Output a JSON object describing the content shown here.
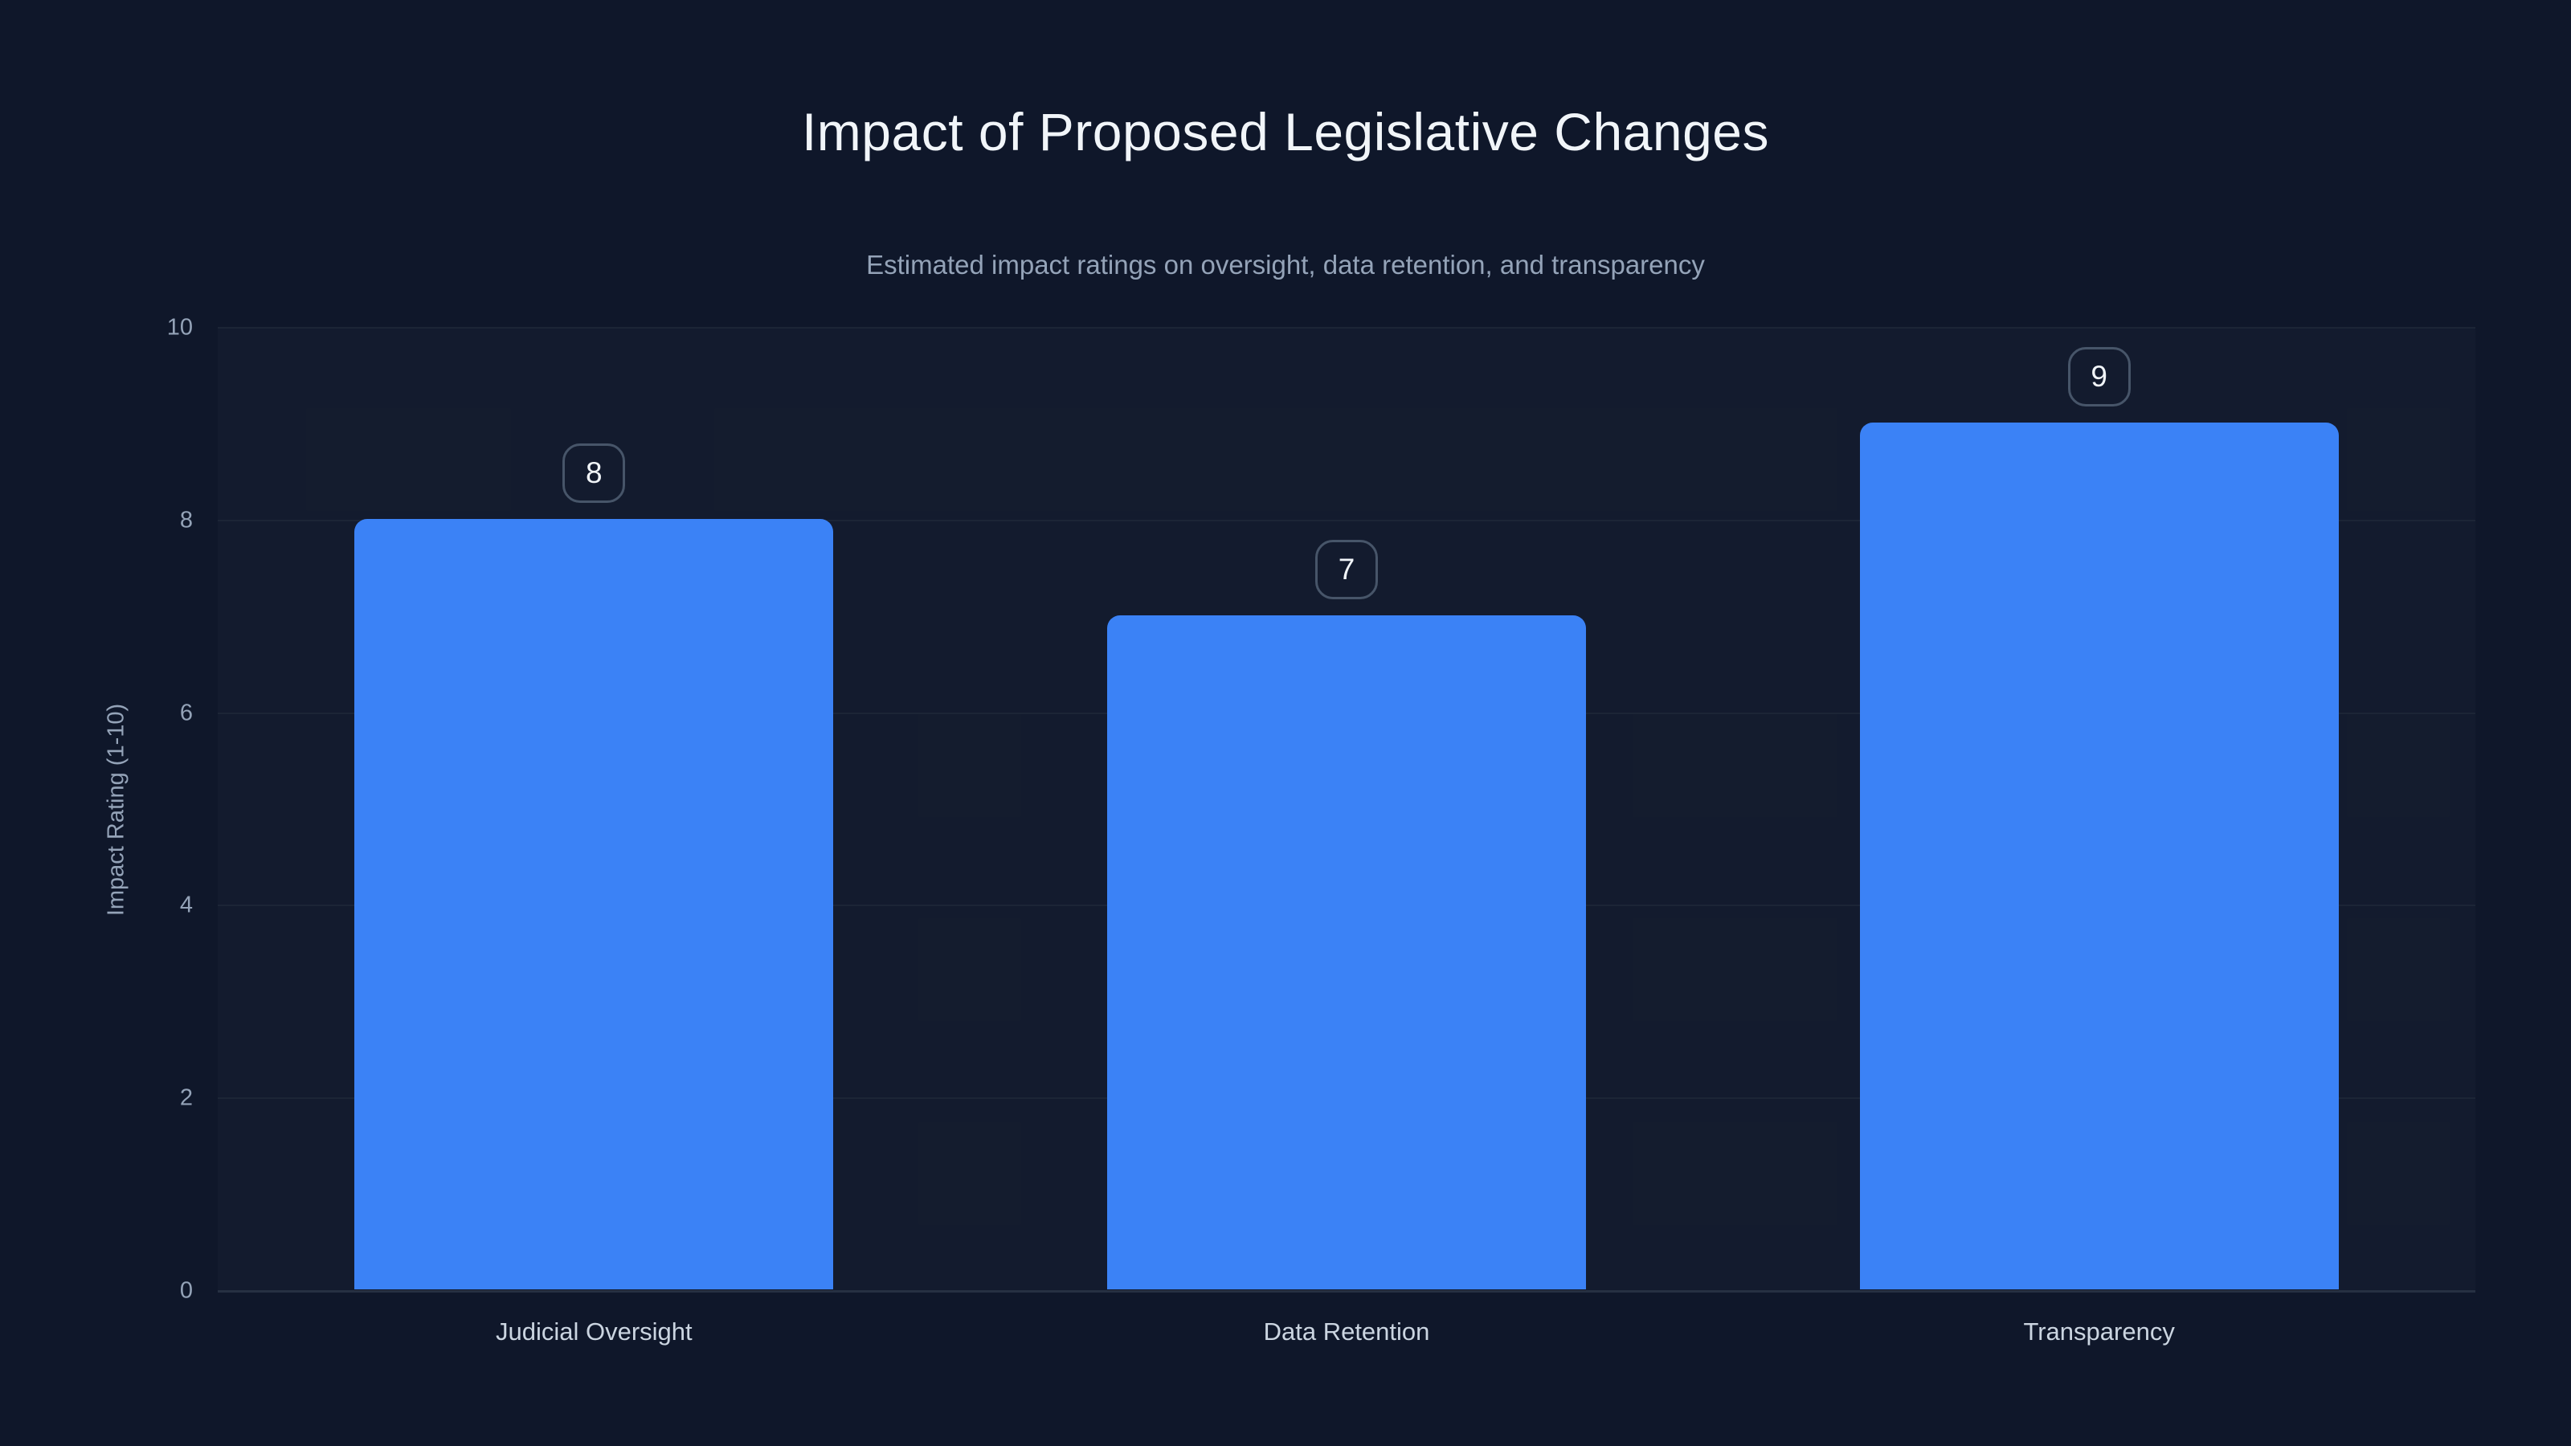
{
  "chart_data": {
    "type": "bar",
    "title": "Impact of Proposed Legislative Changes",
    "subtitle": "Estimated impact ratings on oversight, data retention, and transparency",
    "categories": [
      "Judicial Oversight",
      "Data Retention",
      "Transparency"
    ],
    "values": [
      8,
      7,
      9
    ],
    "value_labels": [
      "8",
      "7",
      "9"
    ],
    "xlabel": "",
    "ylabel": "Impact Rating (1-10)",
    "ylim": [
      0,
      10
    ],
    "yticks": [
      0,
      2,
      4,
      6,
      8,
      10
    ],
    "grid": true,
    "legend": false
  },
  "colors": {
    "background": "#0f172a",
    "bar": "#3b82f6",
    "gridline": "#1c2536",
    "axis_line": "#263042",
    "title_text": "#f1f5f9",
    "muted_text": "#94a3b8",
    "category_text": "#cbd5e1",
    "badge_border": "#475569"
  }
}
